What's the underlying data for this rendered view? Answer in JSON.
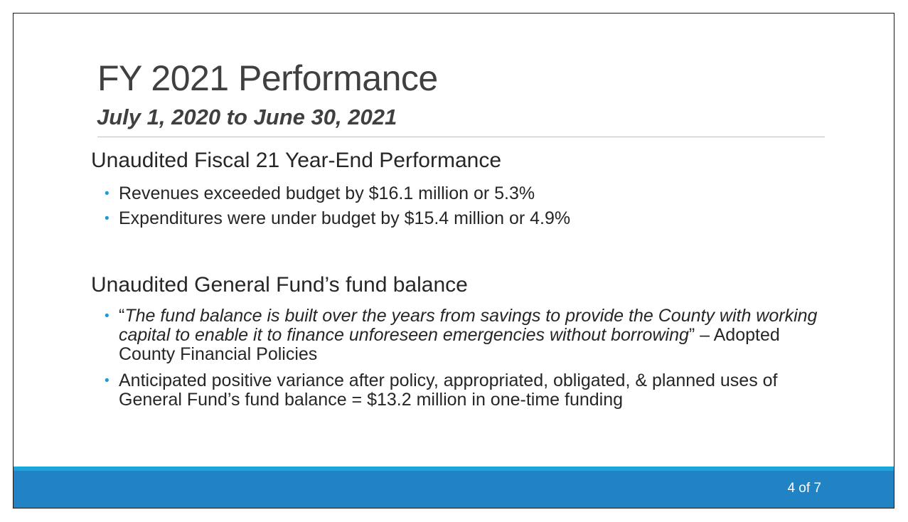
{
  "slide": {
    "title": "FY 2021 Performance",
    "subtitle": "July 1, 2020 to June 30, 2021",
    "sections": [
      {
        "heading": "Unaudited Fiscal 21 Year-End Performance",
        "bullets": [
          "Revenues exceeded budget by $16.1 million or 5.3%",
          "Expenditures were under budget by $15.4 million or 4.9%"
        ]
      },
      {
        "heading": "Unaudited General Fund’s fund balance",
        "quote_open": "“",
        "quote_text": "The fund balance is built over the years from savings to provide the County with working capital to enable it to finance unforeseen emergencies without borrowing",
        "quote_close": "” – Adopted County Financial Policies",
        "bullet_2": "Anticipated positive variance after policy, appropriated, obligated, & planned uses of General Fund’s fund balance = $13.2 million in one-time funding"
      }
    ],
    "page_number": "4 of 7"
  },
  "colors": {
    "accent_bullet": "#1c9ad6",
    "footer_bar": "#2283c4",
    "footer_stripe": "#1aa6da",
    "title_text": "#404040",
    "body_text": "#262626"
  },
  "icons": {
    "bullet": "bullet-dot-icon"
  }
}
